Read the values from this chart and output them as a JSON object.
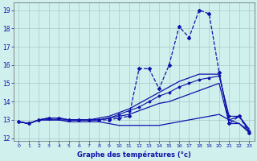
{
  "xlabel": "Graphe des températures (°c)",
  "bg_color": "#cff0ec",
  "grid_color": "#a8c8cc",
  "line_color": "#1010aa",
  "xlim_min": -0.5,
  "xlim_max": 23.5,
  "ylim_min": 11.85,
  "ylim_max": 19.4,
  "yticks": [
    12,
    13,
    14,
    15,
    16,
    17,
    18,
    19
  ],
  "xticks": [
    0,
    1,
    2,
    3,
    4,
    5,
    6,
    7,
    8,
    9,
    10,
    11,
    12,
    13,
    14,
    15,
    16,
    17,
    18,
    19,
    20,
    21,
    22,
    23
  ],
  "series": [
    {
      "x": [
        0,
        1,
        2,
        3,
        4,
        5,
        6,
        7,
        8,
        9,
        10,
        11,
        12,
        13,
        14,
        15,
        16,
        17,
        18,
        19,
        20,
        21,
        22,
        23
      ],
      "y": [
        12.9,
        12.8,
        13.0,
        13.1,
        13.1,
        13.0,
        13.0,
        13.0,
        13.0,
        13.0,
        13.1,
        13.2,
        15.8,
        15.8,
        14.7,
        16.0,
        18.1,
        17.5,
        19.0,
        18.8,
        15.6,
        12.8,
        13.2,
        12.3
      ],
      "marker": "D",
      "markersize": 2.0,
      "dashed": true,
      "lw": 0.9
    },
    {
      "x": [
        0,
        1,
        2,
        3,
        4,
        5,
        6,
        7,
        8,
        9,
        10,
        11,
        12,
        13,
        14,
        15,
        16,
        17,
        18,
        19,
        20,
        21,
        22,
        23
      ],
      "y": [
        12.9,
        12.8,
        13.0,
        13.1,
        13.1,
        13.0,
        13.0,
        13.0,
        13.1,
        13.2,
        13.4,
        13.6,
        13.9,
        14.2,
        14.5,
        14.8,
        15.1,
        15.3,
        15.5,
        15.5,
        15.5,
        13.0,
        13.2,
        12.5
      ],
      "marker": null,
      "markersize": 0,
      "dashed": false,
      "lw": 0.9
    },
    {
      "x": [
        0,
        1,
        2,
        3,
        4,
        5,
        6,
        7,
        8,
        9,
        10,
        11,
        12,
        13,
        14,
        15,
        16,
        17,
        18,
        19,
        20,
        21,
        22,
        23
      ],
      "y": [
        12.9,
        12.8,
        13.0,
        13.0,
        13.0,
        13.0,
        13.0,
        13.0,
        13.0,
        13.1,
        13.2,
        13.3,
        13.5,
        13.7,
        13.9,
        14.0,
        14.2,
        14.4,
        14.6,
        14.8,
        15.0,
        12.8,
        12.8,
        12.4
      ],
      "marker": null,
      "markersize": 0,
      "dashed": false,
      "lw": 0.9
    },
    {
      "x": [
        0,
        1,
        2,
        3,
        4,
        5,
        6,
        7,
        8,
        9,
        10,
        11,
        12,
        13,
        14,
        15,
        16,
        17,
        18,
        19,
        20,
        21,
        22,
        23
      ],
      "y": [
        12.9,
        12.8,
        13.0,
        13.0,
        13.0,
        12.9,
        12.9,
        12.9,
        12.9,
        12.8,
        12.7,
        12.7,
        12.7,
        12.7,
        12.7,
        12.8,
        12.9,
        13.0,
        13.1,
        13.2,
        13.3,
        13.0,
        12.8,
        12.3
      ],
      "marker": null,
      "markersize": 0,
      "dashed": false,
      "lw": 0.9
    },
    {
      "x": [
        0,
        1,
        2,
        3,
        4,
        5,
        6,
        7,
        8,
        9,
        10,
        11,
        12,
        13,
        14,
        15,
        16,
        17,
        18,
        19,
        20,
        21,
        22,
        23
      ],
      "y": [
        12.9,
        12.8,
        13.0,
        13.1,
        13.1,
        13.0,
        13.0,
        13.0,
        13.0,
        13.1,
        13.3,
        13.5,
        13.7,
        14.0,
        14.3,
        14.5,
        14.8,
        15.0,
        15.2,
        15.3,
        15.4,
        13.2,
        13.2,
        12.4
      ],
      "marker": "D",
      "markersize": 1.5,
      "dashed": false,
      "lw": 0.8
    }
  ]
}
